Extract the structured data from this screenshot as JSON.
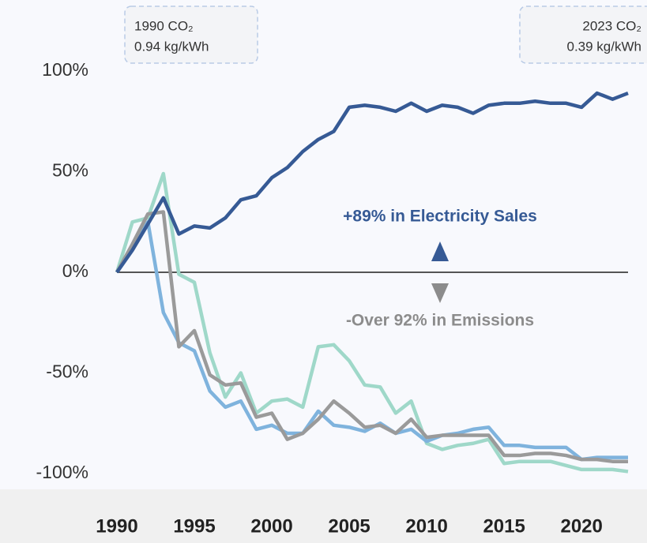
{
  "chart_data": {
    "type": "line",
    "x": [
      1990,
      1991,
      1992,
      1993,
      1994,
      1995,
      1996,
      1997,
      1998,
      1999,
      2000,
      2001,
      2002,
      2003,
      2004,
      2005,
      2006,
      2007,
      2008,
      2009,
      2010,
      2011,
      2012,
      2013,
      2014,
      2015,
      2016,
      2017,
      2018,
      2019,
      2020,
      2021,
      2022,
      2023
    ],
    "series": [
      {
        "color": "#9fd8c9",
        "values": [
          0,
          25,
          27,
          49,
          -1,
          -5,
          -40,
          -62,
          -50,
          -70,
          -64,
          -63,
          -67,
          -37,
          -36,
          -44,
          -56,
          -57,
          -70,
          -64,
          -85,
          -88,
          -86,
          -85,
          -83,
          -95,
          -94,
          -94,
          -94,
          -96,
          -98,
          -98,
          -98,
          -99
        ]
      },
      {
        "color": "#7fb3dd",
        "values": [
          0,
          12,
          25,
          -20,
          -35,
          -39,
          -59,
          -67,
          -64,
          -78,
          -76,
          -80,
          -80,
          -69,
          -76,
          -77,
          -79,
          -75,
          -80,
          -78,
          -84,
          -81,
          -80,
          -78,
          -77,
          -86,
          -86,
          -87,
          -87,
          -87,
          -93,
          -92,
          -92,
          -92
        ]
      },
      {
        "color": "#9a9a9a",
        "values": [
          0,
          14,
          29,
          30,
          -37,
          -29,
          -51,
          -56,
          -55,
          -72,
          -70,
          -83,
          -80,
          -73,
          -64,
          -70,
          -77,
          -76,
          -80,
          -73,
          -82,
          -81,
          -81,
          -81,
          -81,
          -91,
          -91,
          -90,
          -90,
          -91,
          -93,
          -93,
          -94,
          -94
        ]
      },
      {
        "color": "#365a95",
        "values": [
          0,
          11,
          24,
          37,
          19,
          23,
          22,
          27,
          36,
          38,
          47,
          52,
          60,
          66,
          70,
          82,
          83,
          82,
          80,
          84,
          80,
          83,
          82,
          79,
          83,
          84,
          84,
          85,
          84,
          84,
          82,
          89,
          86,
          89
        ]
      }
    ],
    "xlim": [
      1990,
      2023
    ],
    "xticks": [
      1990,
      1995,
      2000,
      2005,
      2010,
      2015,
      2020
    ],
    "ylim": [
      -100,
      100
    ],
    "yticks": [
      {
        "value": -100,
        "label": "-100%"
      },
      {
        "value": -50,
        "label": "-50%"
      },
      {
        "value": 0,
        "label": "0%"
      },
      {
        "value": 50,
        "label": "50%"
      },
      {
        "value": 100,
        "label": "100%"
      }
    ],
    "annotations": [
      {
        "line1": "1990 CO₂",
        "line2": "0.94 kg/kWh"
      },
      {
        "line1": "2023 CO₂",
        "line2": "0.39 kg/kWh"
      },
      {
        "text": "+89% in Electricity Sales"
      },
      {
        "text": "-Over 92% in Emissions"
      }
    ]
  }
}
